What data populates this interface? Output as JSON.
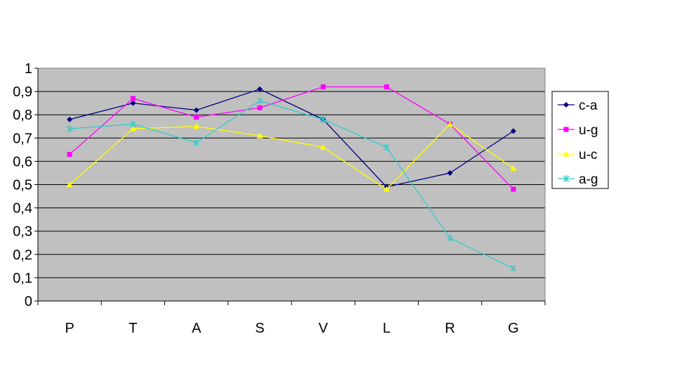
{
  "chart_data": {
    "type": "line",
    "categories": [
      "P",
      "T",
      "A",
      "S",
      "V",
      "L",
      "R",
      "G"
    ],
    "ylim": [
      0,
      1
    ],
    "yticks": [
      "0",
      "0,1",
      "0,2",
      "0,3",
      "0,4",
      "0,5",
      "0,6",
      "0,7",
      "0,8",
      "0,9",
      "1"
    ],
    "grid": true,
    "legend_position": "right",
    "plot_background": "#c0c0c0",
    "series": [
      {
        "name": "c-a",
        "color": "#000080",
        "marker": "diamond",
        "values": [
          0.78,
          0.85,
          0.82,
          0.91,
          0.78,
          0.49,
          0.55,
          0.73
        ]
      },
      {
        "name": "u-g",
        "color": "#ff00ff",
        "marker": "square",
        "values": [
          0.63,
          0.87,
          0.79,
          0.83,
          0.92,
          0.92,
          0.76,
          0.48
        ]
      },
      {
        "name": "u-c",
        "color": "#ffff00",
        "marker": "triangle",
        "values": [
          0.5,
          0.74,
          0.75,
          0.71,
          0.66,
          0.48,
          0.76,
          0.57
        ]
      },
      {
        "name": "a-g",
        "color": "#33cccc",
        "marker": "star",
        "values": [
          0.74,
          0.76,
          0.68,
          0.86,
          0.78,
          0.66,
          0.27,
          0.14
        ]
      }
    ]
  }
}
